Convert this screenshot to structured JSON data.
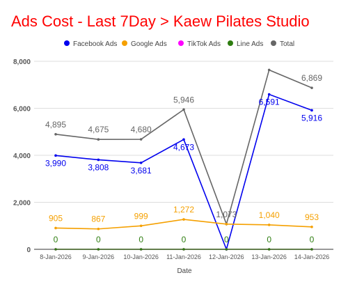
{
  "chart_data": {
    "type": "line",
    "title": "Ads Cost - Last 7Day > Kaew Pilates Studio",
    "title_color": "#ff0000",
    "xlabel": "Date",
    "ylabel": "",
    "ylim": [
      0,
      8000
    ],
    "yticks": [
      0,
      2000,
      4000,
      6000,
      8000
    ],
    "grid": "horizontal",
    "legend_position": "top",
    "categories": [
      "8-Jan-2026",
      "9-Jan-2026",
      "10-Jan-2026",
      "11-Jan-2026",
      "12-Jan-2026",
      "13-Jan-2026",
      "14-Jan-2026"
    ],
    "series": [
      {
        "name": "Facebook Ads",
        "color": "#0000ee",
        "values": [
          3990,
          3808,
          3681,
          4673,
          0,
          6591,
          5916
        ],
        "labels": [
          "3,990",
          "3,808",
          "3,681",
          "4,673",
          "",
          "6,591",
          "5,916"
        ],
        "label_pos": "below"
      },
      {
        "name": "Google Ads",
        "color": "#f5a000",
        "values": [
          905,
          867,
          999,
          1272,
          1073,
          1040,
          953
        ],
        "labels": [
          "905",
          "867",
          "999",
          "1,272",
          "",
          "1,040",
          "953"
        ],
        "label_pos": "above"
      },
      {
        "name": "TikTok Ads",
        "color": "#ff00ff",
        "values": [
          0,
          0,
          0,
          0,
          0,
          0,
          0
        ],
        "labels": [
          "",
          "",
          "",
          "",
          "",
          "",
          ""
        ],
        "label_pos": "above"
      },
      {
        "name": "Line Ads",
        "color": "#2e7d10",
        "values": [
          0,
          0,
          0,
          0,
          0,
          0,
          0
        ],
        "labels": [
          "0",
          "0",
          "0",
          "0",
          "0",
          "0",
          "0"
        ],
        "label_pos": "above"
      },
      {
        "name": "Total",
        "color": "#666666",
        "values": [
          4895,
          4675,
          4680,
          5946,
          1073,
          7631,
          6869
        ],
        "labels": [
          "4,895",
          "4,675",
          "4,680",
          "5,946",
          "1,073",
          "",
          "6,869"
        ],
        "label_pos": "above"
      }
    ]
  }
}
